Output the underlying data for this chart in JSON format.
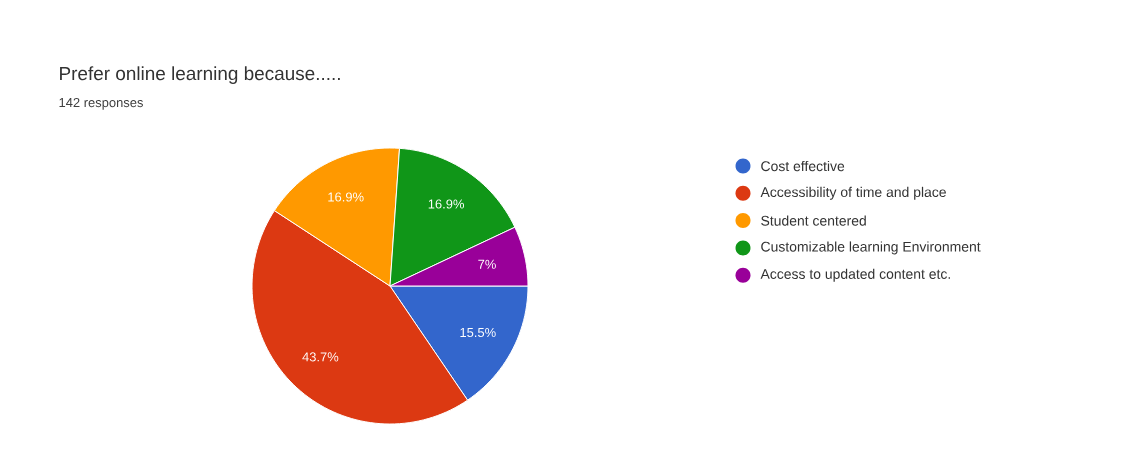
{
  "chart_data": {
    "type": "pie",
    "title": "Prefer online learning because.....",
    "subtitle": "142 responses",
    "categories": [
      "Cost effective",
      "Accessibility of time and place",
      "Student centered",
      "Customizable learning Environment",
      "Access to updated content etc."
    ],
    "values": [
      15.5,
      43.7,
      16.9,
      16.9,
      7
    ],
    "colors": [
      "#3366cc",
      "#dc3912",
      "#ff9900",
      "#109618",
      "#990099"
    ],
    "value_labels": [
      "15.5%",
      "43.7%",
      "16.9%",
      "16.9%",
      "7%"
    ],
    "legend": "right"
  }
}
